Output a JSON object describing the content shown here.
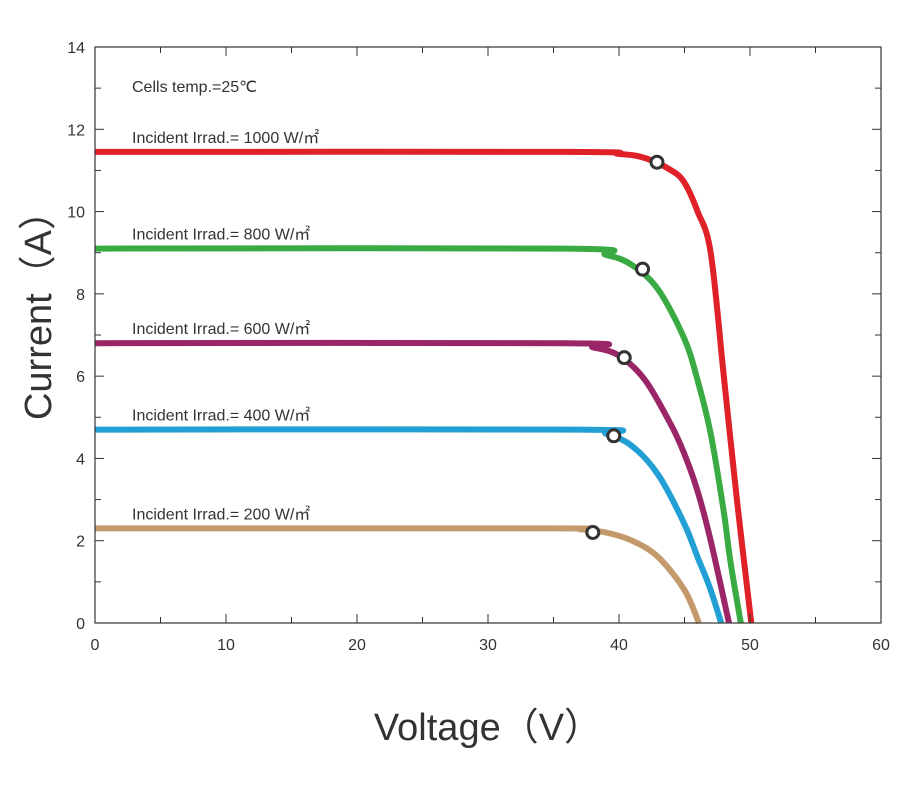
{
  "chart_data": {
    "type": "line",
    "xlabel": "Voltage（V）",
    "ylabel": "Current（A）",
    "xlim": [
      0,
      60
    ],
    "ylim": [
      0,
      14
    ],
    "xticks": [
      0,
      10,
      20,
      30,
      40,
      50,
      60
    ],
    "yticks": [
      0,
      2,
      4,
      6,
      8,
      10,
      12,
      14
    ],
    "grid": false,
    "note": "Cells temp.=25℃",
    "series": [
      {
        "name": "Incident Irrad.= 1000 W/㎡",
        "color": "#e02128",
        "x": [
          0,
          36,
          40,
          42,
          44,
          45,
          46,
          47,
          48,
          49,
          50.1
        ],
        "y": [
          11.45,
          11.45,
          11.4,
          11.3,
          11.0,
          10.7,
          10.0,
          9.0,
          6.0,
          3.0,
          0
        ],
        "mpp": [
          42.9,
          11.2
        ]
      },
      {
        "name": "Incident Irrad.= 800 W/㎡",
        "color": "#3aaa43",
        "x": [
          0,
          36,
          39,
          41,
          43,
          45,
          46,
          47,
          48,
          48.5,
          49.3
        ],
        "y": [
          9.1,
          9.1,
          8.95,
          8.7,
          8.1,
          6.9,
          5.9,
          4.6,
          2.7,
          1.5,
          0
        ],
        "mpp": [
          41.8,
          8.6
        ]
      },
      {
        "name": "Incident Irrad.= 600 W/㎡",
        "color": "#9a2667",
        "x": [
          0,
          36,
          38,
          40,
          42,
          44,
          45,
          46,
          47,
          48.4
        ],
        "y": [
          6.8,
          6.8,
          6.7,
          6.5,
          5.9,
          4.8,
          4.1,
          3.2,
          2.0,
          0
        ],
        "mpp": [
          40.4,
          6.45
        ]
      },
      {
        "name": "Incident Irrad.= 400 W/㎡",
        "color": "#229fd4",
        "x": [
          0,
          37,
          39,
          41,
          43,
          45,
          46,
          47,
          47.8
        ],
        "y": [
          4.7,
          4.7,
          4.6,
          4.3,
          3.6,
          2.4,
          1.6,
          0.8,
          0
        ],
        "mpp": [
          39.6,
          4.55
        ]
      },
      {
        "name": "Incident Irrad.= 200 W/㎡",
        "color": "#c49a6c",
        "x": [
          0,
          35,
          37,
          39,
          41,
          43,
          45,
          46.1
        ],
        "y": [
          2.3,
          2.3,
          2.28,
          2.2,
          2.0,
          1.6,
          0.8,
          0
        ],
        "mpp": [
          38.0,
          2.2
        ]
      }
    ]
  }
}
